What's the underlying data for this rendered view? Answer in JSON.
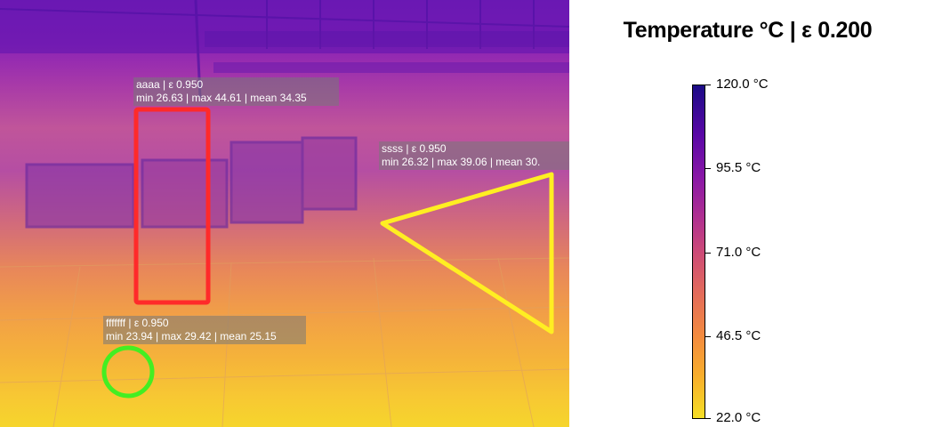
{
  "colors": {
    "roi_rect": "#ff2a2a",
    "roi_triangle": "#ffee22",
    "roi_circle": "#44ee22",
    "label_bg": "rgba(120,120,120,0.55)"
  },
  "rois": [
    {
      "name": "aaaa | ε 0.950",
      "stats": "min 26.63 | max 44.61 | mean 34.35",
      "shape": "rectangle"
    },
    {
      "name": "ssss | ε 0.950",
      "stats": "min 26.32 | max 39.06 | mean 30.",
      "shape": "triangle"
    },
    {
      "name": "fffffff | ε 0.950",
      "stats": "min 23.94 | max 29.42 | mean 25.15",
      "shape": "circle"
    }
  ],
  "colorbar": {
    "title": "Temperature °C | ε 0.200",
    "ticks": [
      "120.0 °C",
      "95.5 °C",
      "71.0 °C",
      "46.5 °C",
      "22.0 °C"
    ],
    "range": [
      22.0,
      120.0
    ]
  }
}
